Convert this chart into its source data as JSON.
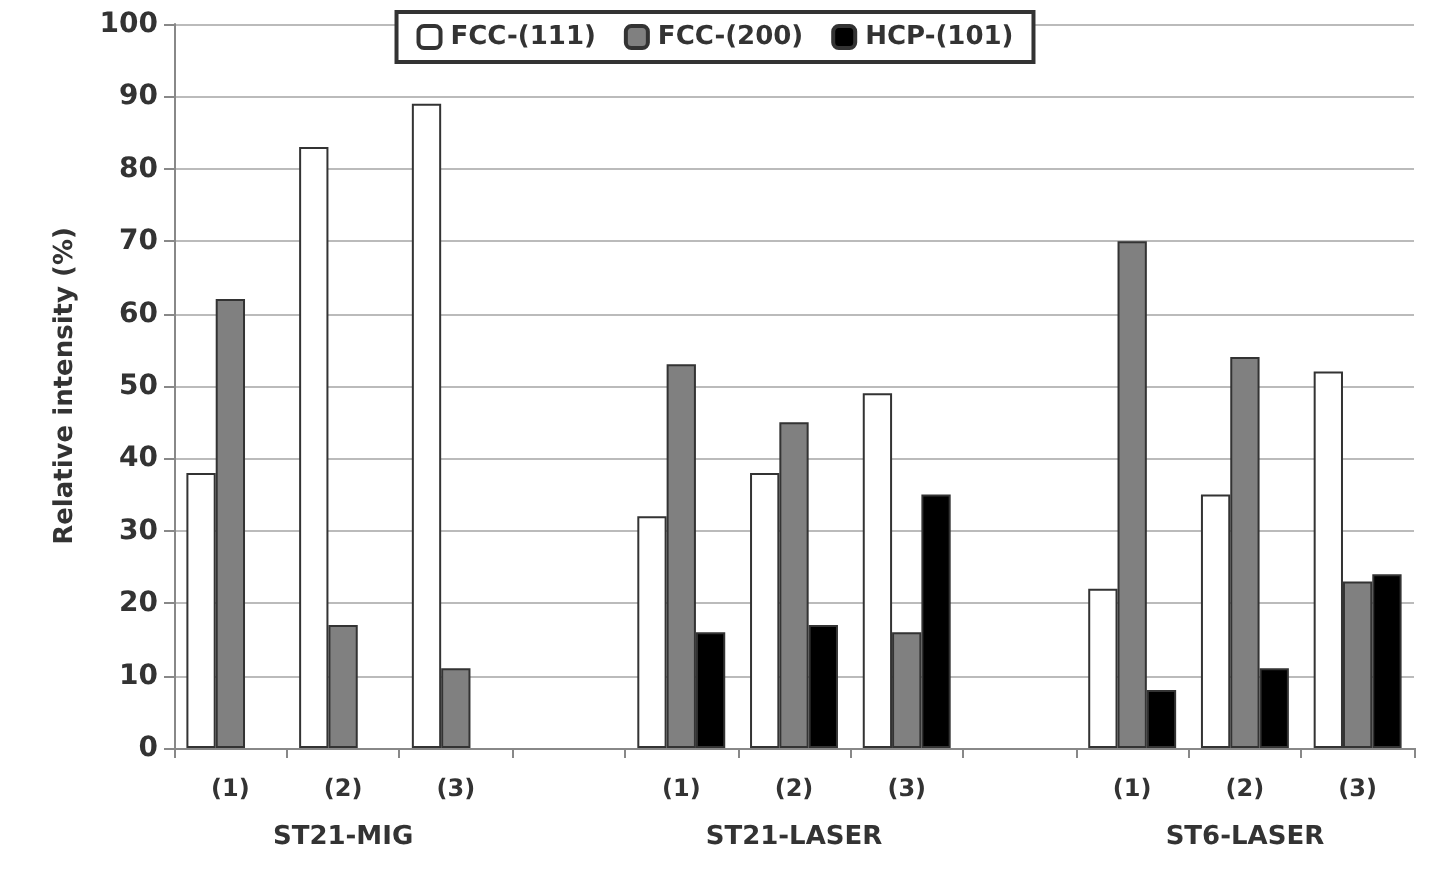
{
  "chart_data": {
    "type": "bar",
    "ylabel": "Relative intensity (%)",
    "categories": [
      "(1)",
      "(2)",
      "(3)",
      null,
      "(1)",
      "(2)",
      "(3)",
      null,
      "(1)",
      "(2)",
      "(3)"
    ],
    "series": [
      {
        "name": "FCC-(111)",
        "color": "#ffffff",
        "values": [
          38,
          83,
          89,
          null,
          32,
          38,
          49,
          null,
          22,
          35,
          52
        ]
      },
      {
        "name": "FCC-(200)",
        "color": "#808080",
        "values": [
          62,
          17,
          11,
          null,
          53,
          45,
          16,
          null,
          70,
          54,
          23
        ]
      },
      {
        "name": "HCP-(101)",
        "color": "#000000",
        "values": [
          null,
          null,
          null,
          null,
          16,
          17,
          35,
          null,
          8,
          11,
          24
        ]
      }
    ],
    "annotations": [
      "ST21-MIG",
      "ST21-LASER",
      "ST6-LASER"
    ],
    "ylim": [
      0,
      100
    ],
    "yticks": [
      0,
      10,
      20,
      30,
      40,
      50,
      60,
      70,
      80,
      90,
      100
    ],
    "grid": "y",
    "legend": "top"
  }
}
